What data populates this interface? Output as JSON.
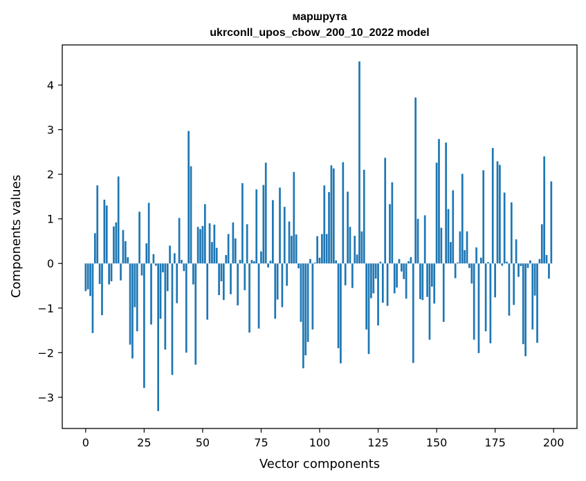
{
  "chart_data": {
    "type": "bar",
    "title": [
      "маршрута",
      "ukrconll_upos_cbow_200_10_2022 model"
    ],
    "xlabel": "Vector components",
    "ylabel": "Components values",
    "xlim": [
      -10,
      210
    ],
    "ylim": [
      -3.7,
      4.9
    ],
    "x_ticks": [
      0,
      25,
      50,
      75,
      100,
      125,
      150,
      175,
      200
    ],
    "y_ticks": [
      -3,
      -2,
      -1,
      0,
      1,
      2,
      3,
      4
    ],
    "bar_color": "#1f77b4",
    "grid": false,
    "values": [
      -0.62,
      -0.58,
      -0.73,
      -1.56,
      0.68,
      1.75,
      -0.46,
      -1.16,
      1.43,
      1.3,
      -0.47,
      -0.4,
      0.83,
      0.92,
      1.95,
      -0.38,
      0.75,
      0.5,
      0.14,
      -1.82,
      -2.13,
      -0.98,
      -1.52,
      1.16,
      -0.27,
      -2.79,
      0.45,
      1.36,
      -1.37,
      0.21,
      -0.05,
      -3.31,
      -1.24,
      -0.2,
      -1.93,
      -0.62,
      0.4,
      -2.5,
      0.23,
      -0.89,
      1.02,
      0.08,
      -0.17,
      -2.0,
      2.97,
      2.18,
      -0.47,
      -2.27,
      0.82,
      0.77,
      0.84,
      1.33,
      -1.26,
      0.9,
      0.48,
      0.87,
      0.35,
      -0.71,
      -0.4,
      -0.82,
      0.19,
      0.66,
      -0.69,
      0.92,
      0.56,
      -0.94,
      0.08,
      1.8,
      -0.6,
      0.88,
      -1.55,
      0.08,
      0.05,
      1.66,
      -1.46,
      0.27,
      1.76,
      2.26,
      -0.09,
      0.06,
      1.42,
      -1.24,
      -0.81,
      1.7,
      -0.98,
      1.27,
      -0.5,
      0.94,
      0.62,
      2.05,
      0.65,
      -0.11,
      -1.31,
      -2.35,
      -2.06,
      -1.76,
      0.1,
      -1.48,
      0.02,
      0.61,
      0.13,
      0.66,
      1.75,
      0.66,
      1.6,
      2.2,
      2.13,
      0.07,
      -1.9,
      -2.24,
      2.27,
      -0.49,
      1.61,
      0.82,
      -0.55,
      0.62,
      0.2,
      4.53,
      0.72,
      2.1,
      -1.48,
      -2.03,
      -0.78,
      -0.67,
      -0.34,
      -1.39,
      0.04,
      -0.88,
      2.37,
      -0.95,
      1.33,
      1.82,
      -0.67,
      -0.54,
      0.1,
      -0.18,
      -0.35,
      -0.79,
      0.05,
      0.14,
      -2.23,
      3.72,
      1.0,
      -0.8,
      -0.82,
      1.08,
      -0.75,
      -1.71,
      -0.52,
      -0.9,
      2.26,
      2.79,
      0.8,
      -1.31,
      2.71,
      1.22,
      0.48,
      1.64,
      -0.33,
      0.02,
      0.72,
      2.01,
      0.3,
      0.72,
      -0.1,
      -0.45,
      -1.71,
      0.36,
      -2.01,
      0.13,
      2.09,
      -1.52,
      0.03,
      -1.79,
      2.59,
      -0.76,
      2.29,
      2.21,
      -0.05,
      1.59,
      0.04,
      -1.17,
      1.37,
      -0.93,
      0.54,
      -0.3,
      -0.06,
      -1.81,
      -2.08,
      -0.1,
      0.07,
      -1.48,
      -0.72,
      -1.78,
      0.1,
      0.88,
      2.4,
      0.19,
      -0.34,
      1.84
    ]
  }
}
